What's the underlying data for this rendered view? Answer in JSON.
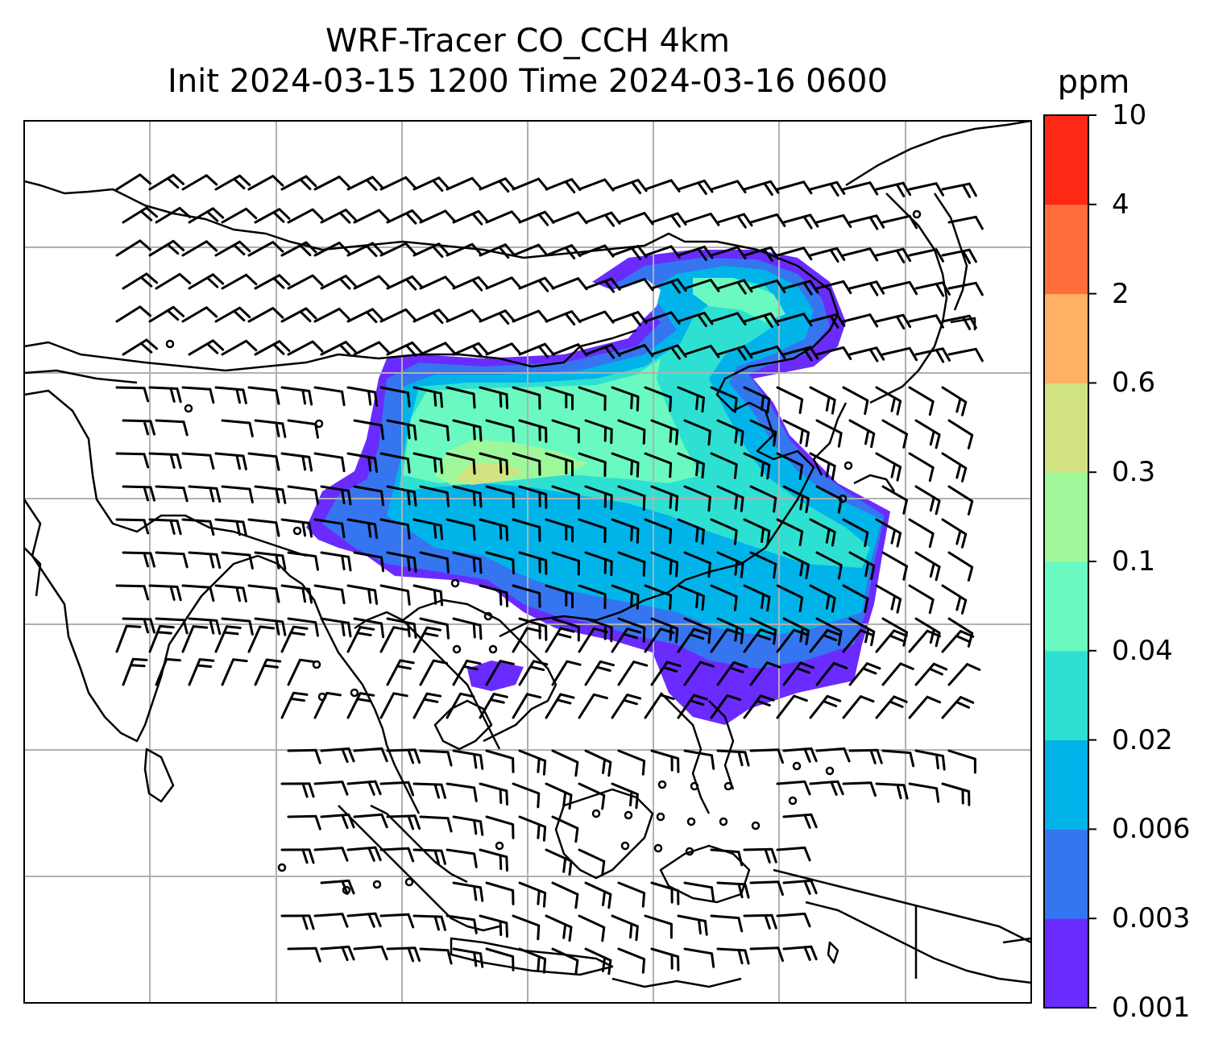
{
  "title": {
    "line1": "WRF-Tracer CO_CCH 4km",
    "line2": "Init 2024-03-15 1200 Time 2024-03-16 0600"
  },
  "colorbar": {
    "unit": "ppm",
    "levels": [
      "0.001",
      "0.003",
      "0.006",
      "0.02",
      "0.04",
      "0.1",
      "0.3",
      "0.6",
      "2",
      "4",
      "10"
    ],
    "colors": [
      "#6a2bff",
      "#3575f0",
      "#00b4ea",
      "#2ee0d2",
      "#6af9c0",
      "#9ef89a",
      "#d1e283",
      "#ffb064",
      "#ff6e3a",
      "#ff2a16"
    ]
  },
  "map": {
    "grid": true,
    "coastline_color": "#000000",
    "grid_color": "#b0b0b0",
    "wind_barb_color": "#000000",
    "plume_description_colors": [
      "#6a2bff",
      "#3575f0",
      "#00b4ea",
      "#2ee0d2",
      "#6af9c0",
      "#9ef89a"
    ]
  }
}
